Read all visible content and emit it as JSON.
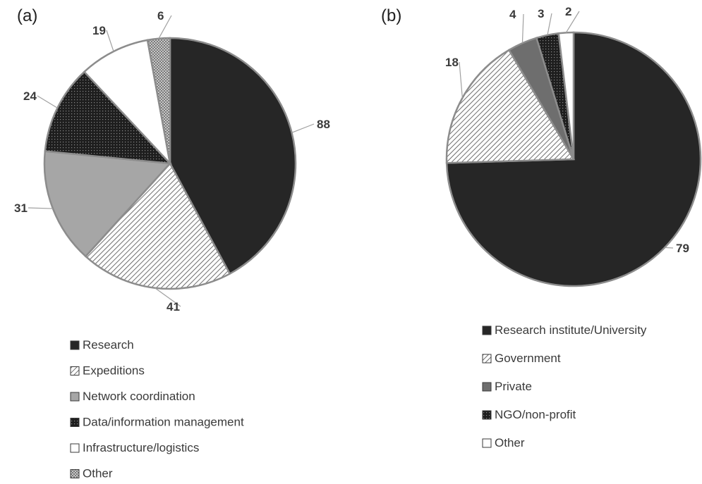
{
  "chart_data": [
    {
      "type": "pie",
      "panel_label": "(a)",
      "title": "",
      "legend_position": "bottom",
      "slices": [
        {
          "label": "Research",
          "value": 88,
          "fill": "solid-dark",
          "color": "#262626"
        },
        {
          "label": "Expeditions",
          "value": 41,
          "fill": "diagonal-hatch",
          "color": "#555555"
        },
        {
          "label": "Network coordination",
          "value": 31,
          "fill": "solid-light",
          "color": "#a6a6a6"
        },
        {
          "label": "Data/information management",
          "value": 24,
          "fill": "dark-dotted",
          "color": "#262626"
        },
        {
          "label": "Infrastructure/logistics",
          "value": 19,
          "fill": "white",
          "color": "#ffffff"
        },
        {
          "label": "Other",
          "value": 6,
          "fill": "light-dotted",
          "color": "#9a9a9a"
        }
      ]
    },
    {
      "type": "pie",
      "panel_label": "(b)",
      "title": "",
      "legend_position": "bottom",
      "slices": [
        {
          "label": "Research institute/University",
          "value": 79,
          "fill": "solid-dark",
          "color": "#262626"
        },
        {
          "label": "Government",
          "value": 18,
          "fill": "diagonal-hatch",
          "color": "#555555"
        },
        {
          "label": "Private",
          "value": 4,
          "fill": "solid-mid",
          "color": "#6e6e6e"
        },
        {
          "label": "NGO/non-profit",
          "value": 3,
          "fill": "dark-dotted",
          "color": "#262626"
        },
        {
          "label": "Other",
          "value": 2,
          "fill": "white",
          "color": "#ffffff"
        }
      ]
    }
  ]
}
